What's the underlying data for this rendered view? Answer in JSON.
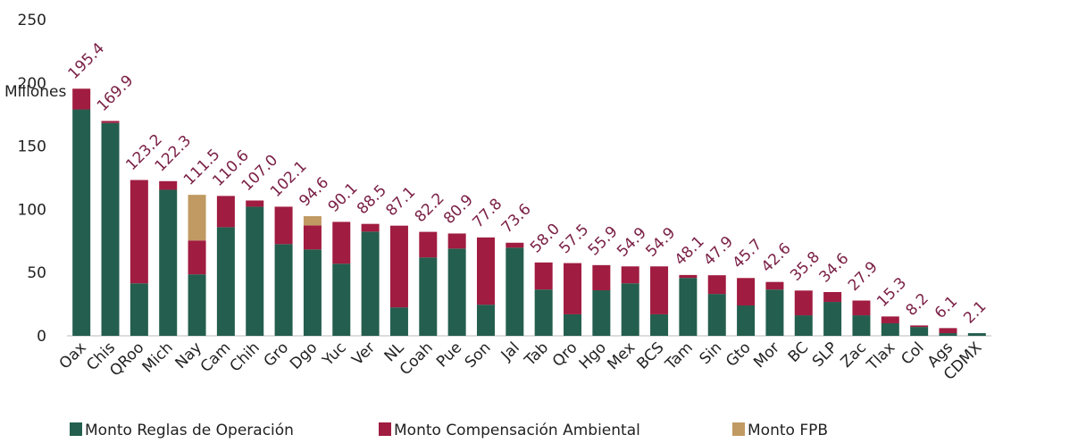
{
  "chart_data": {
    "type": "stacked_bar",
    "y_label": "Millones",
    "categories": [
      "Oax",
      "Chis",
      "QRoo",
      "Mich",
      "Nay",
      "Cam",
      "Chih",
      "Gro",
      "Dgo",
      "Yuc",
      "Ver",
      "NL",
      "Coah",
      "Pue",
      "Son",
      "Jal",
      "Tab",
      "Qro",
      "Hgo",
      "Mex",
      "BCS",
      "Tam",
      "Sin",
      "Gto",
      "Mor",
      "BC",
      "SLP",
      "Zac",
      "Tlax",
      "Col",
      "Ags",
      "CDMX"
    ],
    "series": [
      {
        "name": "Monto Reglas de Operación",
        "color": "#245e4e",
        "values": [
          179,
          168.3,
          41.5,
          115.5,
          48.6,
          85.9,
          102.1,
          72.5,
          68.3,
          57,
          82.4,
          22.5,
          62,
          69,
          24.6,
          69.7,
          36.6,
          17,
          36,
          41.5,
          17,
          45.8,
          33.1,
          24,
          36.6,
          16.2,
          26.8,
          16.2,
          9.9,
          7,
          2.1,
          2.1
        ]
      },
      {
        "name": "Monto  Compensación Ambiental",
        "color": "#a01c40",
        "values": [
          16.4,
          1.6,
          81.7,
          6.8,
          26.8,
          24.7,
          4.9,
          29.6,
          19,
          33.1,
          6.1,
          64.6,
          20.2,
          11.9,
          53.2,
          3.9,
          21.4,
          40.5,
          19.9,
          13.4,
          37.9,
          2.3,
          14.8,
          21.7,
          6,
          19.6,
          7.8,
          11.7,
          5.4,
          1.2,
          4,
          0
        ]
      },
      {
        "name": "Monto  FPB",
        "color": "#c09a62",
        "values": [
          0,
          0,
          0,
          0,
          36.1,
          0,
          0,
          0,
          7.3,
          0,
          0,
          0,
          0,
          0,
          0,
          0,
          0,
          0,
          0,
          0,
          0,
          0,
          0,
          0,
          0,
          0,
          0,
          0,
          0,
          0,
          0,
          0
        ]
      }
    ],
    "totals": [
      195.4,
      169.9,
      123.2,
      122.3,
      111.5,
      110.6,
      {
        "value": 107,
        "label": "107.0"
      },
      102.1,
      94.6,
      90.1,
      88.5,
      87.1,
      82.2,
      80.9,
      77.8,
      73.6,
      {
        "value": 58,
        "label": "58.0"
      },
      57.5,
      55.9,
      54.9,
      54.9,
      48.1,
      47.9,
      45.7,
      42.6,
      35.8,
      34.6,
      27.9,
      15.3,
      8.2,
      6.1,
      2.1
    ],
    "totals_color": "#7a2046",
    "ylim": [
      0,
      250
    ],
    "yticks": [
      0,
      50,
      100,
      150,
      200,
      250
    ],
    "grid": false
  }
}
